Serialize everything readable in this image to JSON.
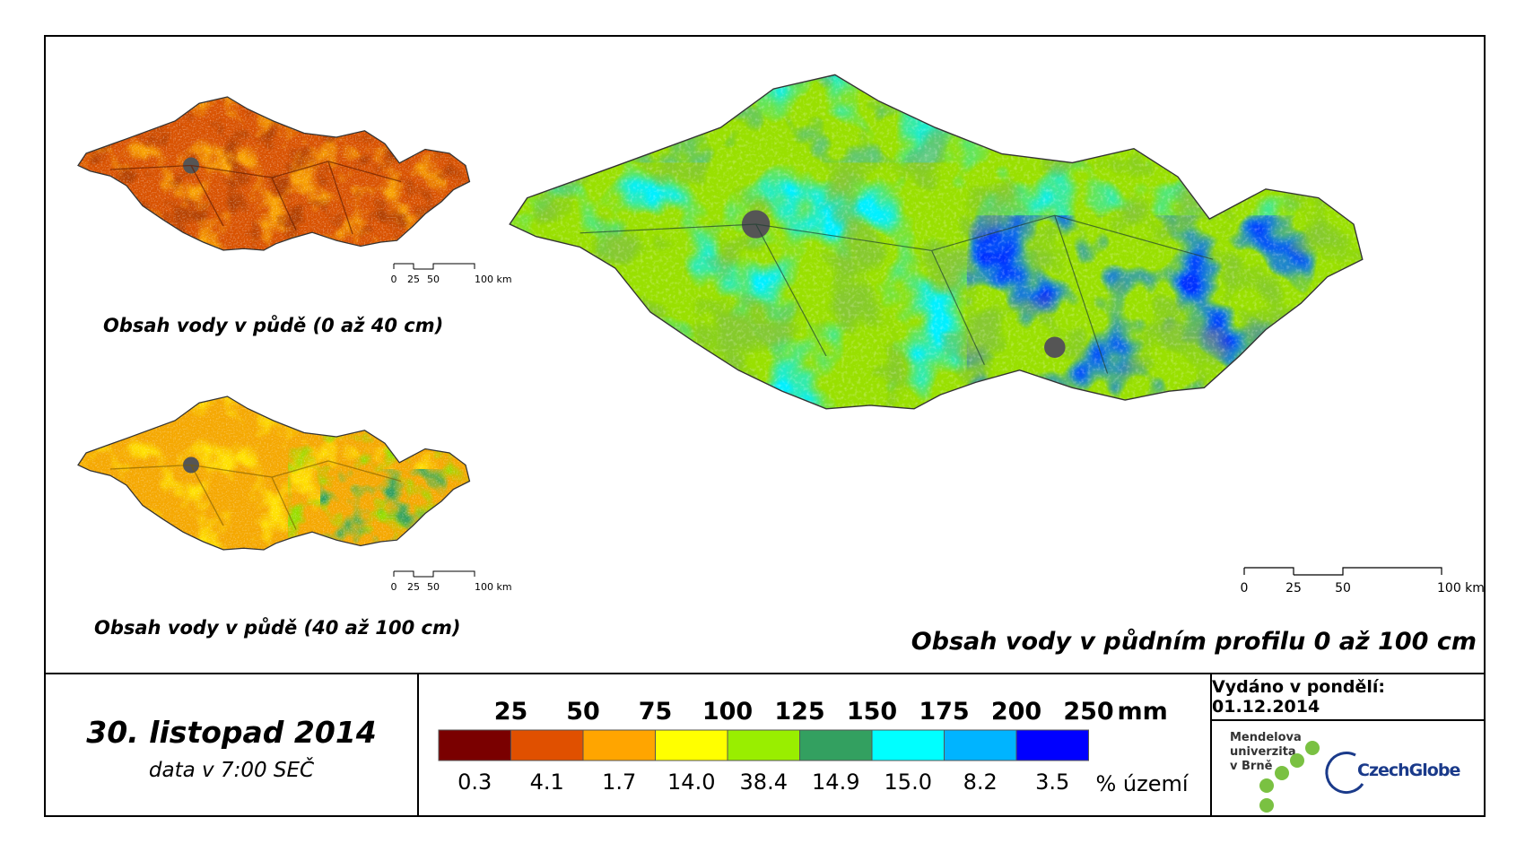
{
  "maps": {
    "small_top": {
      "title": "Obsah vody v půdě (0 až 40 cm)"
    },
    "small_bottom": {
      "title": "Obsah vody v půdě (40 až 100 cm)"
    },
    "large": {
      "title": "Obsah vody v půdním profilu 0 až 100 cm"
    }
  },
  "scale_bar": {
    "ticks": [
      "0",
      "25",
      "50",
      "100 km"
    ]
  },
  "date": {
    "title": "30. listopad 2014",
    "subtitle": "data v 7:00 SEČ"
  },
  "legend": {
    "unit": "mm",
    "percent_unit": "% území",
    "classes": [
      {
        "upper": "25",
        "color": "#7a0000",
        "percent": "0.3"
      },
      {
        "upper": "50",
        "color": "#e05000",
        "percent": "4.1"
      },
      {
        "upper": "75",
        "color": "#ffa500",
        "percent": "1.7"
      },
      {
        "upper": "100",
        "color": "#ffff00",
        "percent": "14.0"
      },
      {
        "upper": "125",
        "color": "#99ee00",
        "percent": "38.4"
      },
      {
        "upper": "150",
        "color": "#33a060",
        "percent": "14.9"
      },
      {
        "upper": "175",
        "color": "#00ffff",
        "percent": "15.0"
      },
      {
        "upper": "200",
        "color": "#00b4ff",
        "percent": "8.2"
      },
      {
        "upper": "250",
        "color": "#0000ff",
        "percent": "3.5"
      }
    ]
  },
  "issue": {
    "text": "Vydáno v pondělí: 01.12.2014"
  },
  "logos": {
    "mendelu": [
      "Mendelova",
      "univerzita",
      "v Brně"
    ],
    "czechglobe": "CzechGlobe"
  }
}
